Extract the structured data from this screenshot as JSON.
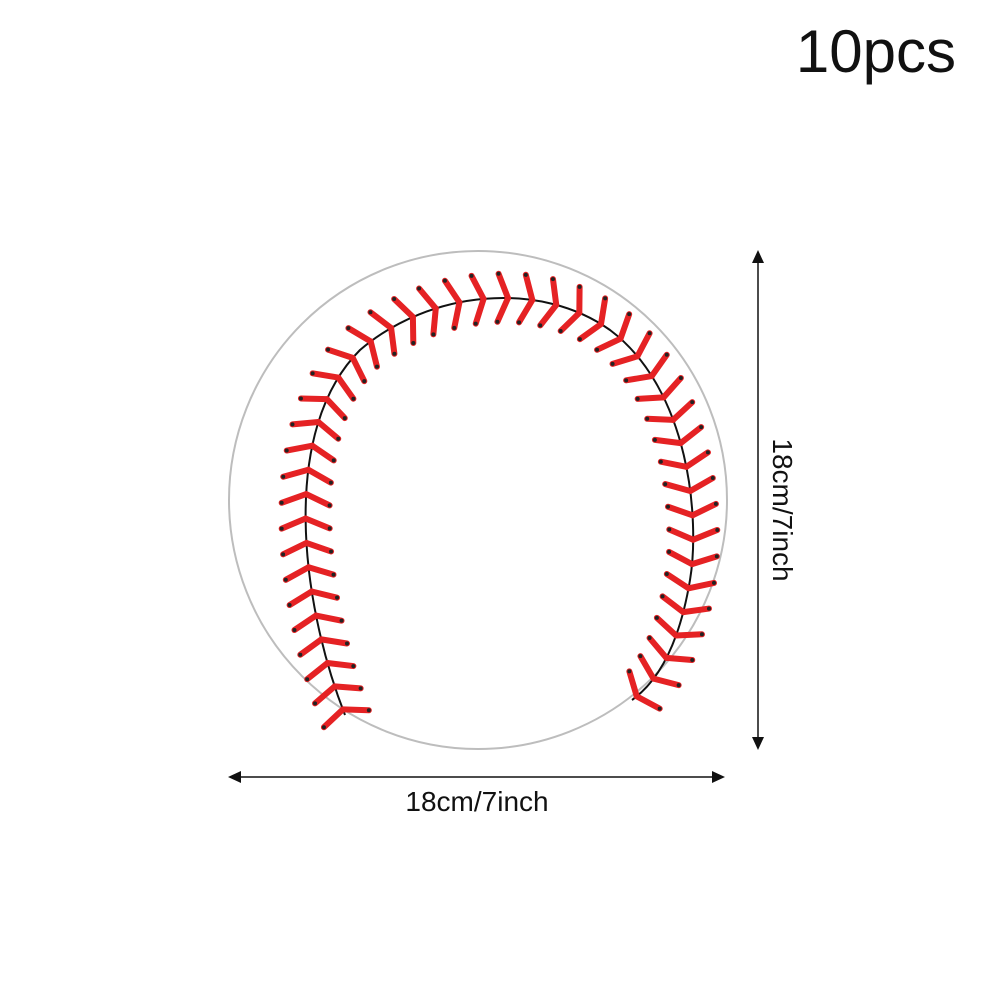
{
  "quantity_label": "10pcs",
  "width_label": "18cm/7inch",
  "height_label": "18cm/7inch",
  "colors": {
    "stitch": "#e52224",
    "seam": "#111111",
    "outline": "#bdbdbd"
  }
}
